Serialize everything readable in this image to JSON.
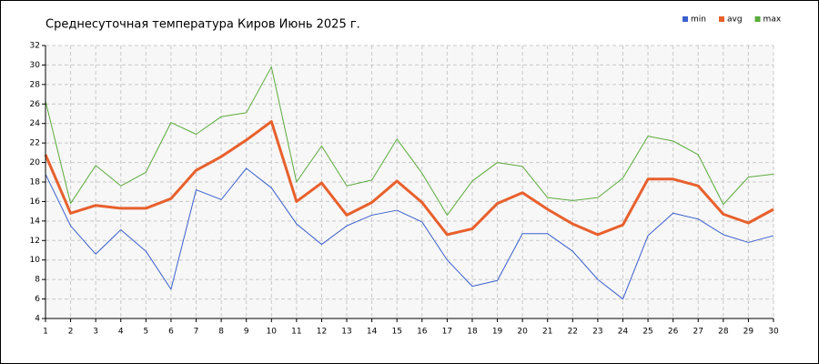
{
  "chart_data": {
    "type": "line",
    "title": "Среднесуточная температура Киров  Июнь 2025 г.",
    "x": [
      1,
      2,
      3,
      4,
      5,
      6,
      7,
      8,
      9,
      10,
      11,
      12,
      13,
      14,
      15,
      16,
      17,
      18,
      19,
      20,
      21,
      22,
      23,
      24,
      25,
      26,
      27,
      28,
      29,
      30
    ],
    "series": [
      {
        "name": "min",
        "color": "#3a5fcd",
        "width": 1,
        "values": [
          18.8,
          13.5,
          10.6,
          13.1,
          10.9,
          7.0,
          17.2,
          16.2,
          19.4,
          17.4,
          13.7,
          11.6,
          13.5,
          14.6,
          15.1,
          13.9,
          10.0,
          7.3,
          7.9,
          12.7,
          12.7,
          10.9,
          8.0,
          6.0,
          12.5,
          14.8,
          14.2,
          12.6,
          11.8,
          12.5
        ]
      },
      {
        "name": "avg",
        "color": "#e8602c",
        "width": 3,
        "values": [
          20.8,
          14.8,
          15.6,
          15.3,
          15.3,
          16.3,
          19.2,
          20.6,
          22.3,
          24.2,
          16.0,
          17.9,
          14.6,
          15.9,
          18.1,
          15.9,
          12.6,
          13.2,
          15.8,
          16.9,
          15.2,
          13.7,
          12.6,
          13.6,
          18.3,
          18.3,
          17.6,
          14.7,
          13.8,
          15.2
        ]
      },
      {
        "name": "max",
        "color": "#5aab3c",
        "width": 1,
        "values": [
          26.3,
          15.8,
          19.7,
          17.6,
          19.0,
          24.1,
          22.9,
          24.7,
          25.1,
          29.8,
          18.0,
          21.7,
          17.6,
          18.2,
          22.4,
          18.9,
          14.6,
          18.1,
          20.0,
          19.6,
          16.4,
          16.1,
          16.4,
          18.4,
          22.7,
          22.2,
          20.8,
          15.7,
          18.5,
          18.8
        ]
      }
    ],
    "xlim": [
      1,
      30
    ],
    "xticks": [
      1,
      2,
      3,
      4,
      5,
      6,
      7,
      8,
      9,
      10,
      11,
      12,
      13,
      14,
      15,
      16,
      17,
      18,
      19,
      20,
      21,
      22,
      23,
      24,
      25,
      26,
      27,
      28,
      29,
      30
    ],
    "ylim": [
      4,
      32
    ],
    "yticks": [
      4,
      6,
      8,
      10,
      12,
      14,
      16,
      18,
      20,
      22,
      24,
      26,
      28,
      30,
      32
    ],
    "grid": true,
    "legend": "top-right"
  }
}
